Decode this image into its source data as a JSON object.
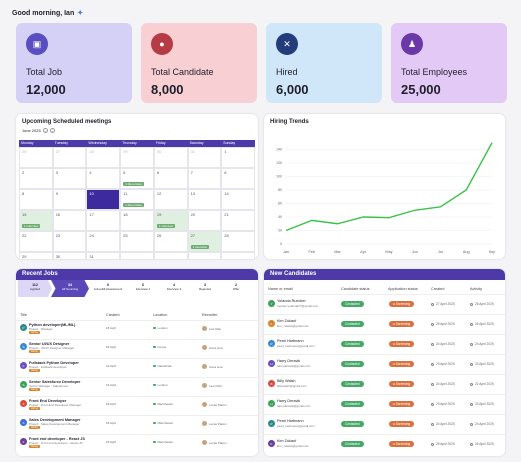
{
  "greeting": "Good morning, Ian",
  "cards": [
    {
      "label": "Total Job",
      "value": "12,000",
      "bg": "#d4d0f6",
      "icon": "briefcase-icon",
      "ic": "#5a4dbf"
    },
    {
      "label": "Total Candidate",
      "value": "8,000",
      "bg": "#f8cfd2",
      "icon": "candidate-icon",
      "ic": "#b53b45"
    },
    {
      "label": "Hired",
      "value": "6,000",
      "bg": "#cfe7f8",
      "icon": "handshake-icon",
      "ic": "#233d7a"
    },
    {
      "label": "Total Employees",
      "value": "25,000",
      "bg": "#e2c9f6",
      "icon": "team-icon",
      "ic": "#6b38a8"
    }
  ],
  "meetings": {
    "title": "Upcoming Scheduled meetings",
    "month": "June 2025",
    "days": [
      "Monday",
      "Tuesday",
      "Wednesday",
      "Thursday",
      "Friday",
      "Saturday",
      "Sunday"
    ],
    "cells": [
      {
        "d": "26",
        "dim": true
      },
      {
        "d": "27",
        "dim": true
      },
      {
        "d": "28",
        "dim": true
      },
      {
        "d": "29",
        "dim": true
      },
      {
        "d": "30",
        "dim": true
      },
      {
        "d": "31",
        "dim": true
      },
      {
        "d": "1"
      },
      {
        "d": "2"
      },
      {
        "d": "3"
      },
      {
        "d": "4"
      },
      {
        "d": "5",
        "ev": "1 Mon+View"
      },
      {
        "d": "6"
      },
      {
        "d": "7"
      },
      {
        "d": "8"
      },
      {
        "d": "8"
      },
      {
        "d": "9"
      },
      {
        "d": "10",
        "sel": true
      },
      {
        "d": "11",
        "ev": "1 Mon+View"
      },
      {
        "d": "12"
      },
      {
        "d": "13"
      },
      {
        "d": "14"
      },
      {
        "d": "15",
        "green": true,
        "ev": "1 interview"
      },
      {
        "d": "16"
      },
      {
        "d": "17"
      },
      {
        "d": "18"
      },
      {
        "d": "19",
        "green": true,
        "ev": "1 interview"
      },
      {
        "d": "20"
      },
      {
        "d": "21"
      },
      {
        "d": "22"
      },
      {
        "d": "23"
      },
      {
        "d": "24"
      },
      {
        "d": "25"
      },
      {
        "d": "26"
      },
      {
        "d": "27",
        "green": true,
        "ev": "1 interview"
      },
      {
        "d": "28"
      },
      {
        "d": "29"
      },
      {
        "d": "30"
      },
      {
        "d": "31"
      },
      {
        "d": ""
      },
      {
        "d": ""
      },
      {
        "d": ""
      },
      {
        "d": ""
      }
    ]
  },
  "trends": {
    "title": "Hiring Trends"
  },
  "chart_data": {
    "type": "line",
    "title": "Hiring Trends",
    "categories": [
      "Jan",
      "Feb",
      "Mar",
      "Apr",
      "May",
      "Jun",
      "Jul",
      "Aug",
      "Sep"
    ],
    "values": [
      20,
      35,
      30,
      40,
      39,
      50,
      55,
      80,
      150
    ],
    "ylim": [
      0,
      160
    ],
    "yticks": [
      0,
      20,
      40,
      60,
      80,
      100,
      120,
      140
    ],
    "color": "#3cc24a",
    "grid": true
  },
  "jobs": {
    "title": "Recent Jobs",
    "pipeline": [
      {
        "n": "112",
        "l": "Applied"
      },
      {
        "n": "34",
        "l": "All Sourcing"
      },
      {
        "n": "6",
        "l": "Job+skill Assessment"
      },
      {
        "n": "6",
        "l": "Interview 1"
      },
      {
        "n": "4",
        "l": "Interview 2"
      },
      {
        "n": "3",
        "l": "Rejected"
      },
      {
        "n": "2",
        "l": "Offer"
      }
    ],
    "cols": [
      "Title",
      "Created",
      "Location",
      "Recruiter"
    ],
    "rows": [
      {
        "t": "Python developer(ML/ML)",
        "s": "Project : Manager",
        "tag": "Hiring",
        "c": "18 April",
        "loc": "London",
        "r": "Luis Mac",
        "col": "#2b8a8a"
      },
      {
        "t": "Senior UI/UX Designer",
        "s": "Project : UI/UX Designer Manager",
        "tag": "Hiring",
        "c": "18 April",
        "loc": "Kenya",
        "r": "Anna Lina",
        "col": "#3a8ad4"
      },
      {
        "t": "Fullstack Python Developer",
        "s": "Project : Fullstack developer",
        "tag": "Hiring",
        "c": "19 April",
        "loc": "Nairobi/wk",
        "r": "Anna Lina",
        "col": "#6b4fc2"
      },
      {
        "t": "Senior Salesforce Developer",
        "s": "Senior Manager : SalesForce",
        "tag": "Hiring",
        "c": "19 April",
        "loc": "London",
        "r": "Leon Mox",
        "col": "#3aa356"
      },
      {
        "t": "Front End Developer",
        "s": "Project : Front End Developer Manager",
        "tag": "Hiring",
        "c": "18 April",
        "loc": "Manchester",
        "r": "Lucas Patton",
        "col": "#d94b3a"
      },
      {
        "t": "Sales Development Manager",
        "s": "Project : Sales Development Manager",
        "tag": "Hiring",
        "c": "18 April",
        "loc": "Manchester",
        "r": "Lucas Patton",
        "col": "#3a6fd4"
      },
      {
        "t": "Front end developer - React JS",
        "s": "Project : Front end developer - React JS",
        "tag": "Hiring",
        "c": "18 April",
        "loc": "Manchester",
        "r": "Lucas Patton",
        "col": "#6b3e9e"
      }
    ]
  },
  "candidates": {
    "title": "New Candidates",
    "cols": [
      "Name or email",
      "Candidate status",
      "Application status",
      "Created",
      "Activity"
    ],
    "rows": [
      {
        "n": "Yolanda Ruecker",
        "e": "ruecker.yolanda77@gmail.com",
        "s": "Contacted",
        "a": "Screening",
        "c": "27 April 2025",
        "ac": "26 April 2025",
        "col": "#3aa356"
      },
      {
        "n": "Kim Zukauf",
        "e": "kim_zukauf@gmail.com",
        "s": "Contacted",
        "a": "Screening",
        "c": "25 April 2025",
        "ac": "26 April 2025",
        "col": "#d9822b"
      },
      {
        "n": "Pearl Hartmann",
        "e": "pearl_hartmann@gmail.com",
        "s": "Contacted",
        "a": "Screening",
        "c": "24 April 2025",
        "ac": "24 April 2025",
        "col": "#3a8ad4"
      },
      {
        "n": "Harry Deravik",
        "e": "harryderavik@gmail.com",
        "s": "Contacted",
        "a": "Screening",
        "c": "23 April 2025",
        "ac": "23 April 2025",
        "col": "#6b4fc2"
      },
      {
        "n": "Billy Walsh",
        "e": "billywalsh@gmail.com",
        "s": "Contacted",
        "a": "Screening",
        "c": "24 April 2025",
        "ac": "22 April 2025",
        "col": "#d94b3a"
      },
      {
        "n": "Harry Deravik",
        "e": "harryderavik@gmail.com",
        "s": "Contacted",
        "a": "Screening",
        "c": "23 April 2025",
        "ac": "23 April 2025",
        "col": "#3aa356"
      },
      {
        "n": "Pearl Hartmann",
        "e": "pearl_hartmann@gmail.com",
        "s": "Contacted",
        "a": "Screening",
        "c": "24 April 2025",
        "ac": "24 April 2025",
        "col": "#2b8a8a"
      },
      {
        "n": "Kim Zukauf",
        "e": "kim_zukauf@gmail.com",
        "s": "Contacted",
        "a": "Screening",
        "c": "25 April 2025",
        "ac": "26 April 2025",
        "col": "#6b3e9e"
      }
    ]
  }
}
